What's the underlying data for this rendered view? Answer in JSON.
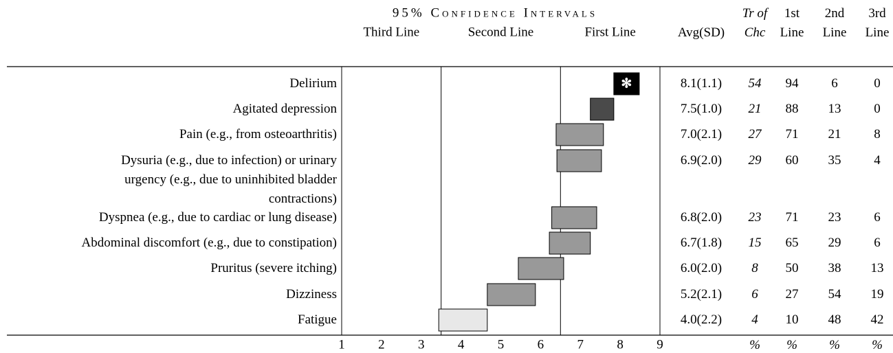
{
  "chart_data": {
    "type": "range",
    "title": "95% Confidence Intervals",
    "interval_labels": [
      "Third Line",
      "Second Line",
      "First Line"
    ],
    "thresholds": [
      3.5,
      6.5
    ],
    "xlim": [
      1,
      9
    ],
    "xticks": [
      1,
      2,
      3,
      4,
      5,
      6,
      7,
      8,
      9
    ],
    "categories": [
      "Delirium",
      "Agitated depression",
      "Pain (e.g., from osteoarthritis)",
      "Dysuria (e.g., due to infection) or urinary\nurgency (e.g., due to uninhibited bladder\ncontractions)",
      "Dyspnea (e.g., due to cardiac or lung disease)",
      "Abdominal discomfort (e.g., due to constipation)",
      "Pruritus (severe itching)",
      "Dizziness",
      "Fatigue"
    ],
    "low": [
      7.84,
      7.25,
      6.39,
      6.41,
      6.28,
      6.22,
      5.44,
      4.66,
      3.44
    ],
    "high": [
      8.48,
      7.84,
      7.58,
      7.53,
      7.41,
      7.25,
      6.58,
      5.87,
      4.66
    ],
    "colors": [
      "#000000",
      "#4a4a4a",
      "#999999",
      "#999999",
      "#999999",
      "#999999",
      "#999999",
      "#999999",
      "#e8e8e8"
    ],
    "symbols": [
      "✻",
      null,
      null,
      null,
      null,
      null,
      null,
      null,
      null
    ],
    "table": {
      "headers": [
        "Avg(SD)",
        "Tr of\nChc",
        "1st\nLine",
        "2nd\nLine",
        "3rd\nLine"
      ],
      "avg_sd": [
        "8.1(1.1)",
        "7.5(1.0)",
        "7.0(2.1)",
        "6.9(2.0)",
        "6.8(2.0)",
        "6.7(1.8)",
        "6.0(2.0)",
        "5.2(2.1)",
        "4.0(2.2)"
      ],
      "tr_of_chc": [
        54,
        21,
        27,
        29,
        23,
        15,
        8,
        6,
        4
      ],
      "first_line": [
        94,
        88,
        71,
        60,
        71,
        65,
        50,
        27,
        10
      ],
      "second_line": [
        6,
        13,
        21,
        35,
        23,
        29,
        38,
        54,
        48
      ],
      "third_line": [
        0,
        0,
        8,
        4,
        6,
        6,
        13,
        19,
        42
      ],
      "units": [
        "%",
        "%",
        "%",
        "%"
      ]
    }
  }
}
